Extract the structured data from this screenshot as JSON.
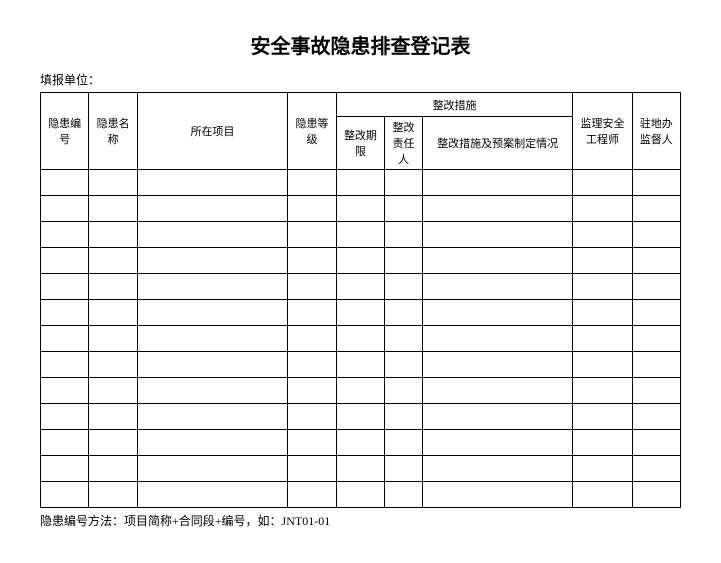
{
  "title": "安全事故隐患排查登记表",
  "subtitle": "填报单位：",
  "footnote": "隐患编号方法：项目简称+合同段+编号，如：JNT01-01",
  "headers": {
    "col_id": "隐患编号",
    "col_name": "隐患名称",
    "col_project": "所在项目",
    "col_level": "隐患等级",
    "col_measures_group": "整改措施",
    "col_period": "整改期限",
    "col_person": "整改责任人",
    "col_measure": "整改措施及预案制定情况",
    "col_engineer": "监理安全工程师",
    "col_supervisor": "驻地办监督人"
  },
  "table_style": {
    "border_color": "#000000",
    "background_color": "#ffffff",
    "text_color": "#000000",
    "header_fontsize": 11,
    "title_fontsize": 20,
    "subtitle_fontsize": 12,
    "footnote_fontsize": 12,
    "num_data_rows": 13,
    "num_columns": 9
  },
  "rows": [
    [
      "",
      "",
      "",
      "",
      "",
      "",
      "",
      "",
      ""
    ],
    [
      "",
      "",
      "",
      "",
      "",
      "",
      "",
      "",
      ""
    ],
    [
      "",
      "",
      "",
      "",
      "",
      "",
      "",
      "",
      ""
    ],
    [
      "",
      "",
      "",
      "",
      "",
      "",
      "",
      "",
      ""
    ],
    [
      "",
      "",
      "",
      "",
      "",
      "",
      "",
      "",
      ""
    ],
    [
      "",
      "",
      "",
      "",
      "",
      "",
      "",
      "",
      ""
    ],
    [
      "",
      "",
      "",
      "",
      "",
      "",
      "",
      "",
      ""
    ],
    [
      "",
      "",
      "",
      "",
      "",
      "",
      "",
      "",
      ""
    ],
    [
      "",
      "",
      "",
      "",
      "",
      "",
      "",
      "",
      ""
    ],
    [
      "",
      "",
      "",
      "",
      "",
      "",
      "",
      "",
      ""
    ],
    [
      "",
      "",
      "",
      "",
      "",
      "",
      "",
      "",
      ""
    ],
    [
      "",
      "",
      "",
      "",
      "",
      "",
      "",
      "",
      ""
    ],
    [
      "",
      "",
      "",
      "",
      "",
      "",
      "",
      "",
      ""
    ]
  ]
}
